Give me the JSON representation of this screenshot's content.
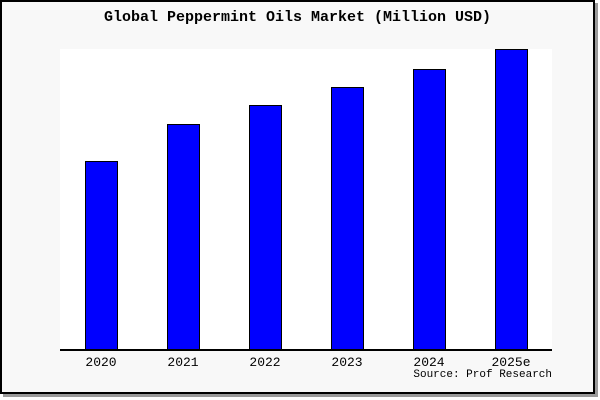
{
  "chart_data": {
    "type": "bar",
    "title": "Global Peppermint Oils Market (Million USD)",
    "categories": [
      "2020",
      "2021",
      "2022",
      "2023",
      "2024",
      "2025e"
    ],
    "values": [
      62.5,
      75,
      81.5,
      87.5,
      93.5,
      100
    ],
    "value_note": "No y-axis or data labels are shown in the image; values are relative bar heights with 2025e = 100",
    "xlabel": "",
    "ylabel": "",
    "ylim": [
      0,
      100.5
    ],
    "grid": false,
    "legend": null,
    "bar_color": "#0000ff",
    "bar_outline_color": "#000000",
    "source": "Source: Prof Research"
  },
  "colors": {
    "page_background": "#ffffff",
    "chart_background": "#f8f8f8",
    "plot_background": "#ffffff",
    "axis": "#000000",
    "border": "#000000",
    "shadow": "#9a9a9a",
    "text": "#000000"
  }
}
